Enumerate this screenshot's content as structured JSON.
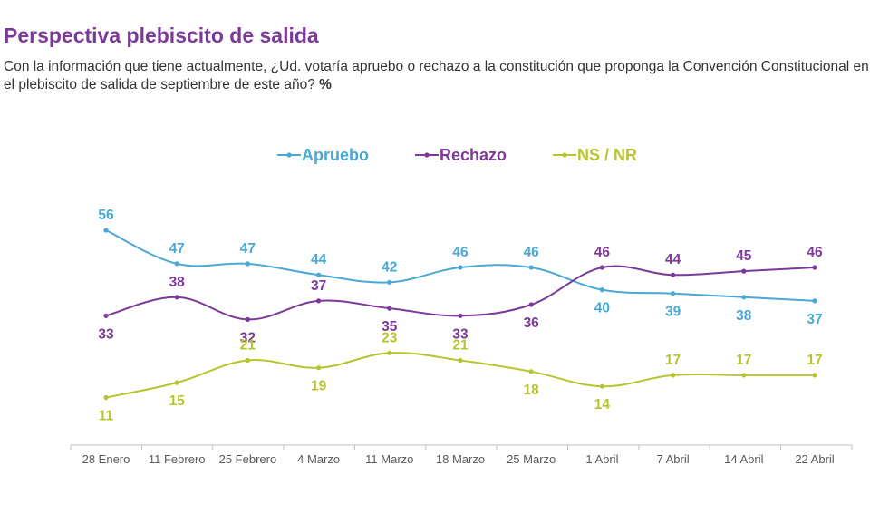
{
  "title": "Perspectiva plebiscito de salida",
  "subtitle": "Con la información que tiene actualmente, ¿Ud. votaría apruebo o rechazo a la constitución que proponga la Convención Constitucional en el plebiscito de salida de septiembre de este año?",
  "subtitle_unit": "%",
  "chart_data": {
    "type": "line",
    "categories": [
      "28 Enero",
      "11 Febrero",
      "25 Febrero",
      "4 Marzo",
      "11 Marzo",
      "18 Marzo",
      "25 Marzo",
      "1 Abril",
      "7 Abril",
      "14 Abril",
      "22 Abril"
    ],
    "series": [
      {
        "name": "Apruebo",
        "color": "#4aa8d4",
        "values": [
          56,
          47,
          47,
          44,
          42,
          46,
          46,
          40,
          39,
          38,
          37
        ]
      },
      {
        "name": "Rechazo",
        "color": "#7b3a98",
        "values": [
          33,
          38,
          32,
          37,
          35,
          33,
          36,
          46,
          44,
          45,
          46
        ]
      },
      {
        "name": "NS / NR",
        "color": "#b8c42f",
        "values": [
          11,
          15,
          21,
          19,
          23,
          21,
          18,
          14,
          17,
          17,
          17
        ]
      }
    ],
    "legend_position": "top-center",
    "data_labels": true,
    "grid": false
  }
}
